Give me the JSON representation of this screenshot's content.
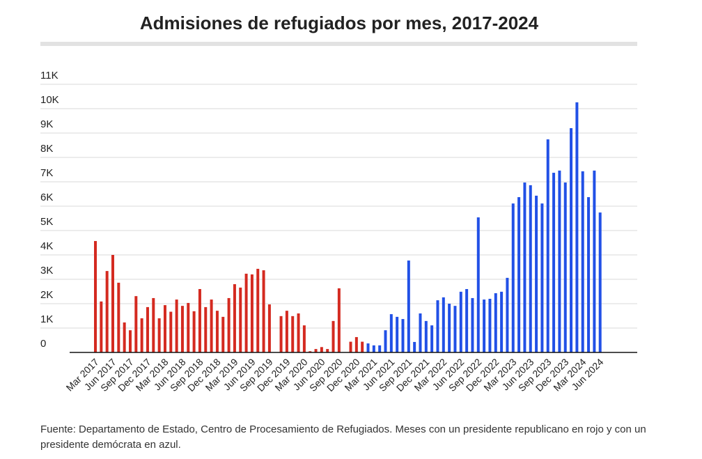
{
  "chart_data": {
    "type": "bar",
    "title": "Admisiones de refugiados por mes, 2017-2024",
    "source": "Fuente: Departamento de Estado, Centro de Procesamiento de Refugiados. Meses con un presidente republicano en rojo y con un presidente demócrata en azul.",
    "categories": [
      "Mar 2017",
      null,
      null,
      "Jun 2017",
      null,
      null,
      "Sep 2017",
      null,
      null,
      "Dec 2017",
      null,
      null,
      "Mar 2018",
      null,
      null,
      "Jun 2018",
      null,
      null,
      "Sep 2018",
      null,
      null,
      "Dec 2018",
      null,
      null,
      "Mar 2019",
      null,
      null,
      "Jun 2019",
      null,
      null,
      "Sep 2019",
      null,
      null,
      "Dec 2019",
      null,
      null,
      "Mar 2020",
      null,
      null,
      "Jun 2020",
      null,
      null,
      "Sep 2020",
      null,
      null,
      "Dec 2020",
      null,
      null,
      "Mar 2021",
      null,
      null,
      "Jun 2021",
      null,
      null,
      "Sep 2021",
      null,
      null,
      "Dec 2021",
      null,
      null,
      "Mar 2022",
      null,
      null,
      "Jun 2022",
      null,
      null,
      "Sep 2022",
      null,
      null,
      "Dec 2022",
      null,
      null,
      "Mar 2023",
      null,
      null,
      "Jun 2023",
      null,
      null,
      "Sep 2023",
      null,
      null,
      "Dec 2023",
      null,
      null,
      "Mar 2024",
      null,
      null,
      "Jun 2024"
    ],
    "series": [
      {
        "color": "#d42a20",
        "values": [
          4570,
          2090,
          3340,
          4000,
          2860,
          1230,
          910,
          2310,
          1400,
          1860,
          2230,
          1400,
          1940,
          1670,
          2170,
          1910,
          2030,
          1690,
          2600,
          1860,
          2170,
          1710,
          1460,
          2230,
          2800,
          2660,
          3230,
          3200,
          3430,
          3370,
          1970,
          0,
          1490,
          1710,
          1490,
          1600,
          1110,
          50,
          140,
          220,
          140,
          1290,
          2630,
          0,
          440,
          630,
          440,
          null,
          null,
          null,
          null,
          null,
          null,
          null,
          null,
          null,
          null,
          null,
          null,
          null,
          null,
          null,
          null,
          null,
          null,
          null,
          null,
          null,
          null,
          null,
          null,
          null,
          null,
          null,
          null,
          null,
          null,
          null,
          null,
          null,
          null,
          null,
          null,
          null,
          null,
          null,
          null,
          null
        ]
      },
      {
        "color": "#2150e6",
        "values": [
          null,
          null,
          null,
          null,
          null,
          null,
          null,
          null,
          null,
          null,
          null,
          null,
          null,
          null,
          null,
          null,
          null,
          null,
          null,
          null,
          null,
          null,
          null,
          null,
          null,
          null,
          null,
          null,
          null,
          null,
          null,
          null,
          null,
          null,
          null,
          null,
          null,
          null,
          null,
          null,
          null,
          null,
          null,
          null,
          null,
          null,
          null,
          370,
          290,
          290,
          910,
          1570,
          1460,
          1370,
          3770,
          430,
          1600,
          1290,
          1110,
          2140,
          2260,
          2000,
          1910,
          2490,
          2600,
          2230,
          5540,
          2170,
          2200,
          2430,
          2490,
          3060,
          6110,
          6370,
          6970,
          6860,
          6430,
          6110,
          8740,
          7370,
          7460,
          6970,
          9200,
          10260,
          7430,
          6370,
          7460,
          5740
        ]
      }
    ],
    "ylim": [
      0,
      11000
    ],
    "yticks": [
      0,
      {
        "value": 1000,
        "label": "1K"
      },
      {
        "value": 2000,
        "label": "2K"
      },
      {
        "value": 3000,
        "label": "3K"
      },
      {
        "value": 4000,
        "label": "4K"
      },
      {
        "value": 5000,
        "label": "5K"
      },
      {
        "value": 6000,
        "label": "6K"
      },
      {
        "value": 7000,
        "label": "7K"
      },
      {
        "value": 8000,
        "label": "8K"
      },
      {
        "value": 9000,
        "label": "9K"
      },
      {
        "value": 10000,
        "label": "10K"
      },
      {
        "value": 11000,
        "label": "11K"
      }
    ],
    "grid": true
  }
}
